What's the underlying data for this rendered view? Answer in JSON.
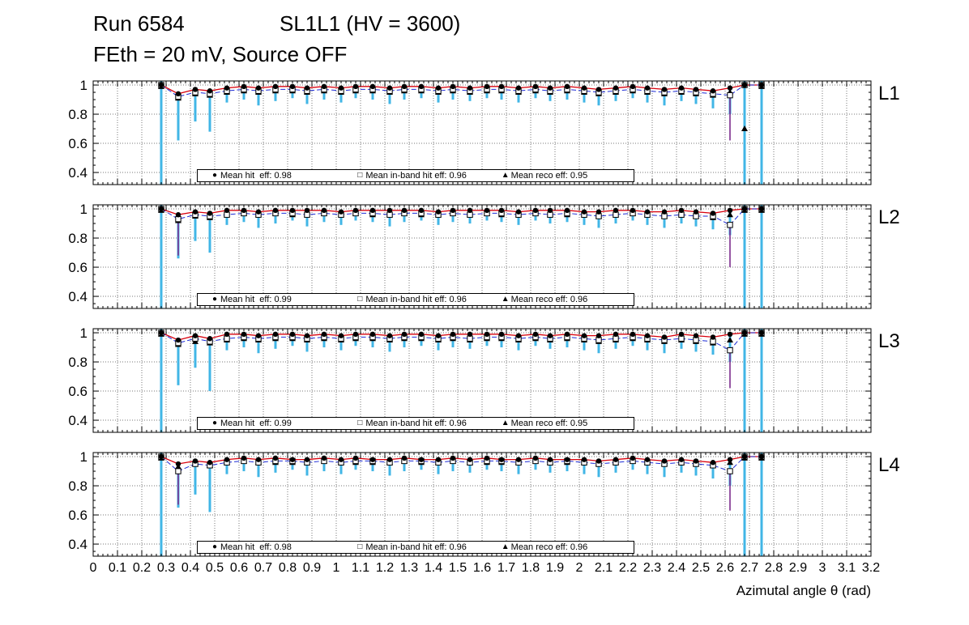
{
  "header": {
    "run": "Run 6584",
    "chamber": "SL1L1 (HV = 3600)",
    "conditions": "FEth = 20 mV, Source OFF"
  },
  "axis": {
    "xlabel": "Azimutal angle θ (rad)",
    "x_range": [
      0,
      3.2
    ],
    "y_range": [
      0.317,
      1.028
    ],
    "x_tick_labels": [
      "0",
      "0.1",
      "0.2",
      "0.3",
      "0.4",
      "0.5",
      "0.6",
      "0.7",
      "0.8",
      "0.9",
      "1",
      "1.1",
      "1.2",
      "1.3",
      "1.4",
      "1.5",
      "1.6",
      "1.7",
      "1.8",
      "1.9",
      "2",
      "2.1",
      "2.2",
      "2.3",
      "2.4",
      "2.5",
      "2.6",
      "2.7",
      "2.8",
      "2.9",
      "3",
      "3.1",
      "3.2"
    ],
    "x_tick_step": 0.1,
    "y_tick_labels": [
      "1",
      "0.8",
      "0.6",
      "0.4"
    ],
    "y_tick_values": [
      1,
      0.8,
      0.6,
      0.4
    ],
    "grid": "dotted"
  },
  "icons": {
    "circle": "●",
    "square": "□",
    "triangle": "▲"
  },
  "colors": {
    "error_bar": "#41b6e6",
    "hit_line": "#d8000c",
    "inband_line": "#1c2bd6",
    "violet_bar": "#7b2d8e",
    "marker": "#000000",
    "background": "#ffffff"
  },
  "chart_data": [
    {
      "type": "scatter",
      "panel_label": "L1",
      "x": [
        0.28,
        0.35,
        0.42,
        0.48,
        0.55,
        0.62,
        0.68,
        0.75,
        0.82,
        0.88,
        0.95,
        1.02,
        1.08,
        1.15,
        1.22,
        1.28,
        1.35,
        1.42,
        1.48,
        1.55,
        1.62,
        1.68,
        1.75,
        1.82,
        1.88,
        1.95,
        2.02,
        2.08,
        2.15,
        2.22,
        2.28,
        2.35,
        2.42,
        2.48,
        2.55,
        2.62,
        2.68,
        2.75
      ],
      "series": [
        {
          "name": "hit efficiency",
          "marker": "filled-circle",
          "line": "red-solid",
          "values": [
            1.0,
            0.94,
            0.97,
            0.96,
            0.98,
            0.99,
            0.98,
            0.99,
            0.99,
            0.98,
            0.99,
            0.98,
            0.99,
            0.99,
            0.98,
            0.99,
            0.99,
            0.98,
            0.99,
            0.98,
            0.99,
            0.99,
            0.98,
            0.99,
            0.98,
            0.99,
            0.98,
            0.97,
            0.98,
            0.99,
            0.98,
            0.97,
            0.98,
            0.97,
            0.96,
            0.98,
            1.0,
            1.0
          ]
        },
        {
          "name": "in-band hit efficiency",
          "marker": "open-square",
          "line": "blue-dashed",
          "values": [
            1.0,
            0.92,
            0.95,
            0.94,
            0.96,
            0.97,
            0.96,
            0.97,
            0.97,
            0.96,
            0.97,
            0.96,
            0.97,
            0.97,
            0.96,
            0.97,
            0.97,
            0.96,
            0.97,
            0.96,
            0.97,
            0.97,
            0.96,
            0.97,
            0.96,
            0.97,
            0.96,
            0.95,
            0.96,
            0.97,
            0.96,
            0.95,
            0.96,
            0.95,
            0.94,
            0.93,
            1.0,
            1.0
          ]
        },
        {
          "name": "reco efficiency",
          "marker": "filled-triangle",
          "line": "none",
          "values": [
            0.99,
            0.91,
            0.94,
            0.93,
            0.95,
            0.96,
            0.95,
            0.96,
            0.96,
            0.95,
            0.96,
            0.95,
            0.96,
            0.96,
            0.95,
            0.96,
            0.96,
            0.95,
            0.96,
            0.95,
            0.96,
            0.96,
            0.95,
            0.96,
            0.95,
            0.96,
            0.95,
            0.94,
            0.95,
            0.96,
            0.95,
            0.94,
            0.95,
            0.94,
            0.93,
            0.95,
            0.7,
            0.99
          ]
        }
      ],
      "hit_err_low": [
        0.32,
        0.62,
        0.75,
        0.68,
        0.88,
        0.9,
        0.86,
        0.89,
        0.91,
        0.87,
        0.9,
        0.88,
        0.91,
        0.9,
        0.87,
        0.9,
        0.91,
        0.88,
        0.9,
        0.89,
        0.91,
        0.9,
        0.88,
        0.91,
        0.89,
        0.9,
        0.88,
        0.86,
        0.89,
        0.91,
        0.88,
        0.86,
        0.89,
        0.87,
        0.84,
        0.8,
        0.32,
        0.32
      ],
      "violet_bars": [
        {
          "x": 2.62,
          "y_top": 0.93,
          "y_bottom": 0.62
        }
      ],
      "legend": [
        {
          "marker": "circle",
          "text": "Mean hit  eff: 0.98"
        },
        {
          "marker": "square",
          "text": "Mean in-band hit eff: 0.96"
        },
        {
          "marker": "triangle",
          "text": "Mean reco eff: 0.95"
        }
      ]
    },
    {
      "type": "scatter",
      "panel_label": "L2",
      "x": [
        0.28,
        0.35,
        0.42,
        0.48,
        0.55,
        0.62,
        0.68,
        0.75,
        0.82,
        0.88,
        0.95,
        1.02,
        1.08,
        1.15,
        1.22,
        1.28,
        1.35,
        1.42,
        1.48,
        1.55,
        1.62,
        1.68,
        1.75,
        1.82,
        1.88,
        1.95,
        2.02,
        2.08,
        2.15,
        2.22,
        2.28,
        2.35,
        2.42,
        2.48,
        2.55,
        2.62,
        2.68,
        2.75
      ],
      "series": [
        {
          "name": "hit efficiency",
          "marker": "filled-circle",
          "line": "red-solid",
          "values": [
            1.0,
            0.96,
            0.98,
            0.97,
            0.99,
            0.99,
            0.98,
            0.99,
            0.99,
            0.99,
            0.99,
            0.98,
            0.99,
            0.99,
            0.99,
            0.99,
            0.99,
            0.98,
            0.99,
            0.99,
            0.99,
            0.99,
            0.98,
            0.99,
            0.99,
            0.99,
            0.98,
            0.98,
            0.99,
            0.99,
            0.98,
            0.98,
            0.99,
            0.98,
            0.97,
            0.99,
            1.0,
            1.0
          ]
        },
        {
          "name": "in-band hit efficiency",
          "marker": "open-square",
          "line": "blue-dashed",
          "values": [
            1.0,
            0.93,
            0.96,
            0.95,
            0.96,
            0.97,
            0.96,
            0.97,
            0.97,
            0.96,
            0.97,
            0.96,
            0.97,
            0.97,
            0.96,
            0.97,
            0.97,
            0.96,
            0.97,
            0.96,
            0.97,
            0.97,
            0.96,
            0.97,
            0.96,
            0.97,
            0.96,
            0.95,
            0.96,
            0.97,
            0.96,
            0.95,
            0.96,
            0.95,
            0.95,
            0.89,
            1.0,
            1.0
          ]
        },
        {
          "name": "reco efficiency",
          "marker": "filled-triangle",
          "line": "none",
          "values": [
            0.99,
            0.92,
            0.95,
            0.94,
            0.96,
            0.97,
            0.96,
            0.97,
            0.96,
            0.96,
            0.97,
            0.96,
            0.97,
            0.96,
            0.96,
            0.97,
            0.96,
            0.96,
            0.97,
            0.96,
            0.97,
            0.96,
            0.96,
            0.97,
            0.96,
            0.96,
            0.96,
            0.95,
            0.96,
            0.97,
            0.96,
            0.95,
            0.96,
            0.95,
            0.94,
            0.96,
            0.99,
            0.99
          ]
        }
      ],
      "hit_err_low": [
        0.32,
        0.66,
        0.78,
        0.7,
        0.89,
        0.91,
        0.87,
        0.9,
        0.92,
        0.88,
        0.91,
        0.89,
        0.92,
        0.91,
        0.88,
        0.91,
        0.92,
        0.89,
        0.91,
        0.9,
        0.92,
        0.91,
        0.89,
        0.92,
        0.9,
        0.91,
        0.89,
        0.87,
        0.9,
        0.92,
        0.89,
        0.87,
        0.9,
        0.88,
        0.86,
        0.82,
        0.32,
        0.32
      ],
      "violet_bars": [
        {
          "x": 0.35,
          "y_top": 0.93,
          "y_bottom": 0.68
        },
        {
          "x": 2.62,
          "y_top": 0.89,
          "y_bottom": 0.6
        }
      ],
      "legend": [
        {
          "marker": "circle",
          "text": "Mean hit  eff: 0.99"
        },
        {
          "marker": "square",
          "text": "Mean in-band hit eff: 0.96"
        },
        {
          "marker": "triangle",
          "text": "Mean reco eff: 0.96"
        }
      ]
    },
    {
      "type": "scatter",
      "panel_label": "L3",
      "x": [
        0.28,
        0.35,
        0.42,
        0.48,
        0.55,
        0.62,
        0.68,
        0.75,
        0.82,
        0.88,
        0.95,
        1.02,
        1.08,
        1.15,
        1.22,
        1.28,
        1.35,
        1.42,
        1.48,
        1.55,
        1.62,
        1.68,
        1.75,
        1.82,
        1.88,
        1.95,
        2.02,
        2.08,
        2.15,
        2.22,
        2.28,
        2.35,
        2.42,
        2.48,
        2.55,
        2.62,
        2.68,
        2.75
      ],
      "series": [
        {
          "name": "hit efficiency",
          "marker": "filled-circle",
          "line": "red-solid",
          "values": [
            1.0,
            0.95,
            0.98,
            0.96,
            0.99,
            0.99,
            0.98,
            0.99,
            0.99,
            0.98,
            0.99,
            0.98,
            0.99,
            0.99,
            0.98,
            0.99,
            0.99,
            0.98,
            0.99,
            0.99,
            0.99,
            0.99,
            0.98,
            0.99,
            0.98,
            0.99,
            0.98,
            0.98,
            0.99,
            0.99,
            0.98,
            0.97,
            0.99,
            0.98,
            0.97,
            0.99,
            1.0,
            1.0
          ]
        },
        {
          "name": "in-band hit efficiency",
          "marker": "open-square",
          "line": "blue-dashed",
          "values": [
            1.0,
            0.93,
            0.96,
            0.94,
            0.96,
            0.97,
            0.96,
            0.97,
            0.97,
            0.96,
            0.97,
            0.96,
            0.97,
            0.97,
            0.96,
            0.97,
            0.97,
            0.96,
            0.97,
            0.96,
            0.97,
            0.97,
            0.96,
            0.97,
            0.96,
            0.97,
            0.96,
            0.95,
            0.96,
            0.97,
            0.96,
            0.95,
            0.96,
            0.95,
            0.94,
            0.88,
            1.0,
            1.0
          ]
        },
        {
          "name": "reco efficiency",
          "marker": "filled-triangle",
          "line": "none",
          "values": [
            0.99,
            0.92,
            0.94,
            0.93,
            0.95,
            0.96,
            0.95,
            0.96,
            0.96,
            0.95,
            0.96,
            0.95,
            0.96,
            0.96,
            0.95,
            0.96,
            0.96,
            0.95,
            0.96,
            0.95,
            0.96,
            0.96,
            0.95,
            0.96,
            0.95,
            0.96,
            0.95,
            0.94,
            0.95,
            0.96,
            0.95,
            0.94,
            0.95,
            0.94,
            0.93,
            0.95,
            0.99,
            0.99
          ]
        }
      ],
      "hit_err_low": [
        0.32,
        0.64,
        0.76,
        0.6,
        0.88,
        0.9,
        0.86,
        0.89,
        0.91,
        0.87,
        0.9,
        0.88,
        0.91,
        0.9,
        0.87,
        0.9,
        0.91,
        0.88,
        0.9,
        0.89,
        0.91,
        0.9,
        0.88,
        0.91,
        0.89,
        0.9,
        0.88,
        0.86,
        0.89,
        0.91,
        0.88,
        0.86,
        0.89,
        0.87,
        0.85,
        0.8,
        0.32,
        0.32
      ],
      "violet_bars": [
        {
          "x": 2.62,
          "y_top": 0.88,
          "y_bottom": 0.62
        }
      ],
      "legend": [
        {
          "marker": "circle",
          "text": "Mean hit  eff: 0.99"
        },
        {
          "marker": "square",
          "text": "Mean in-band hit eff: 0.96"
        },
        {
          "marker": "triangle",
          "text": "Mean reco eff: 0.95"
        }
      ]
    },
    {
      "type": "scatter",
      "panel_label": "L4",
      "x": [
        0.28,
        0.35,
        0.42,
        0.48,
        0.55,
        0.62,
        0.68,
        0.75,
        0.82,
        0.88,
        0.95,
        1.02,
        1.08,
        1.15,
        1.22,
        1.28,
        1.35,
        1.42,
        1.48,
        1.55,
        1.62,
        1.68,
        1.75,
        1.82,
        1.88,
        1.95,
        2.02,
        2.08,
        2.15,
        2.22,
        2.28,
        2.35,
        2.42,
        2.48,
        2.55,
        2.62,
        2.68,
        2.75
      ],
      "series": [
        {
          "name": "hit efficiency",
          "marker": "filled-circle",
          "line": "red-solid",
          "values": [
            1.0,
            0.95,
            0.97,
            0.96,
            0.98,
            0.99,
            0.98,
            0.99,
            0.98,
            0.98,
            0.99,
            0.98,
            0.99,
            0.98,
            0.98,
            0.99,
            0.98,
            0.98,
            0.99,
            0.98,
            0.99,
            0.98,
            0.98,
            0.99,
            0.98,
            0.98,
            0.98,
            0.97,
            0.98,
            0.99,
            0.98,
            0.97,
            0.98,
            0.97,
            0.96,
            0.98,
            1.0,
            1.0
          ]
        },
        {
          "name": "in-band hit efficiency",
          "marker": "open-square",
          "line": "blue-dashed",
          "values": [
            1.0,
            0.9,
            0.95,
            0.94,
            0.96,
            0.97,
            0.96,
            0.97,
            0.97,
            0.96,
            0.97,
            0.96,
            0.97,
            0.97,
            0.96,
            0.97,
            0.97,
            0.96,
            0.97,
            0.96,
            0.97,
            0.97,
            0.96,
            0.97,
            0.96,
            0.97,
            0.96,
            0.95,
            0.96,
            0.97,
            0.96,
            0.95,
            0.96,
            0.95,
            0.94,
            0.9,
            1.0,
            1.0
          ]
        },
        {
          "name": "reco efficiency",
          "marker": "filled-triangle",
          "line": "none",
          "values": [
            0.99,
            0.93,
            0.95,
            0.94,
            0.96,
            0.97,
            0.96,
            0.96,
            0.96,
            0.96,
            0.97,
            0.96,
            0.96,
            0.96,
            0.96,
            0.97,
            0.96,
            0.96,
            0.97,
            0.96,
            0.96,
            0.96,
            0.96,
            0.97,
            0.96,
            0.96,
            0.96,
            0.95,
            0.96,
            0.97,
            0.96,
            0.95,
            0.96,
            0.95,
            0.94,
            0.96,
            0.99,
            0.99
          ]
        }
      ],
      "hit_err_low": [
        0.32,
        0.65,
        0.74,
        0.62,
        0.88,
        0.9,
        0.86,
        0.89,
        0.91,
        0.87,
        0.9,
        0.88,
        0.91,
        0.9,
        0.87,
        0.9,
        0.91,
        0.88,
        0.9,
        0.89,
        0.91,
        0.9,
        0.88,
        0.91,
        0.89,
        0.9,
        0.88,
        0.86,
        0.89,
        0.91,
        0.88,
        0.86,
        0.89,
        0.87,
        0.85,
        0.8,
        0.32,
        0.32
      ],
      "violet_bars": [
        {
          "x": 0.35,
          "y_top": 0.9,
          "y_bottom": 0.67
        },
        {
          "x": 2.62,
          "y_top": 0.9,
          "y_bottom": 0.63
        }
      ],
      "legend": [
        {
          "marker": "circle",
          "text": "Mean hit  eff: 0.98"
        },
        {
          "marker": "square",
          "text": "Mean in-band hit eff: 0.96"
        },
        {
          "marker": "triangle",
          "text": "Mean reco eff: 0.96"
        }
      ]
    }
  ]
}
